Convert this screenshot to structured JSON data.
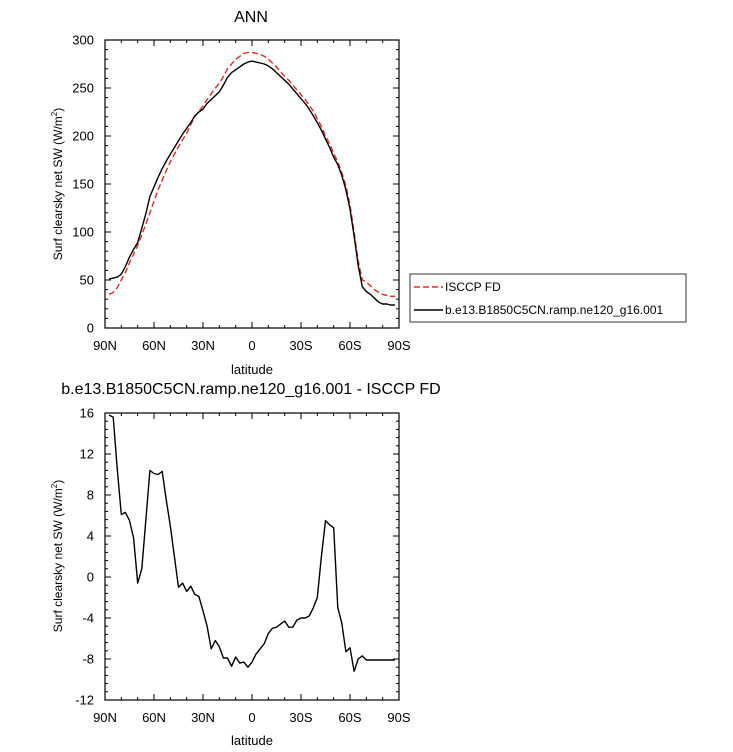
{
  "chart_data": [
    {
      "type": "line",
      "title": "ANN",
      "xlabel": "latitude",
      "ylabel": "Surf clearsky net SW (W/m",
      "ylabel_superscript": "2",
      "ylabel_suffix": ")",
      "xlim": [
        -90,
        90
      ],
      "ylim": [
        0,
        300
      ],
      "x_ticks": [
        -90,
        -60,
        -30,
        0,
        30,
        60,
        90
      ],
      "x_tick_labels": [
        "90N",
        "60N",
        "30N",
        "0",
        "30S",
        "60S",
        "90S"
      ],
      "y_ticks": [
        0,
        50,
        100,
        150,
        200,
        250,
        300
      ],
      "y_tick_labels": [
        "0",
        "50",
        "100",
        "150",
        "200",
        "250",
        "300"
      ],
      "legend_position": "right",
      "series": [
        {
          "name": "ISCCP FD",
          "color": "#e8281e",
          "dash": "dashed",
          "x": [
            -87.5,
            -85,
            -82.5,
            -80,
            -77.5,
            -75,
            -72.5,
            -70,
            -67.5,
            -65,
            -62.5,
            -60,
            -57.5,
            -55,
            -52.5,
            -50,
            -47.5,
            -45,
            -42.5,
            -40,
            -37.5,
            -35,
            -32.5,
            -30,
            -27.5,
            -25,
            -22.5,
            -20,
            -17.5,
            -15,
            -12.5,
            -10,
            -7.5,
            -5,
            -2.5,
            0,
            2.5,
            5,
            7.5,
            10,
            12.5,
            15,
            17.5,
            20,
            22.5,
            25,
            27.5,
            30,
            32.5,
            35,
            37.5,
            40,
            42.5,
            45,
            47.5,
            50,
            52.5,
            55,
            57.5,
            60,
            62.5,
            65,
            67.5,
            70,
            72.5,
            75,
            77.5,
            80,
            82.5,
            85,
            87.5
          ],
          "values": [
            35,
            37,
            42,
            50,
            58,
            68,
            77,
            86,
            97,
            108,
            120,
            132,
            144,
            154,
            164,
            173,
            181,
            189,
            196,
            203,
            212,
            220,
            226,
            231,
            238,
            244,
            250,
            255,
            262,
            270,
            275,
            280,
            283,
            286,
            287,
            287,
            286,
            285,
            283,
            280,
            276,
            272,
            267,
            262,
            258,
            253,
            248,
            243,
            238,
            232,
            226,
            218,
            210,
            200,
            192,
            182,
            173,
            162,
            148,
            128,
            100,
            70,
            50,
            48,
            44,
            40,
            37,
            35,
            34,
            33,
            33
          ]
        },
        {
          "name": "b.e13.B1850C5CN.ramp.ne120_g16.001",
          "color": "#000000",
          "dash": "solid",
          "x": [
            -87.5,
            -85,
            -82.5,
            -80,
            -77.5,
            -75,
            -72.5,
            -70,
            -67.5,
            -65,
            -62.5,
            -60,
            -57.5,
            -55,
            -52.5,
            -50,
            -47.5,
            -45,
            -42.5,
            -40,
            -37.5,
            -35,
            -32.5,
            -30,
            -27.5,
            -25,
            -22.5,
            -20,
            -17.5,
            -15,
            -12.5,
            -10,
            -7.5,
            -5,
            -2.5,
            0,
            2.5,
            5,
            7.5,
            10,
            12.5,
            15,
            17.5,
            20,
            22.5,
            25,
            27.5,
            30,
            32.5,
            35,
            37.5,
            40,
            42.5,
            45,
            47.5,
            50,
            52.5,
            55,
            57.5,
            60,
            62.5,
            65,
            67.5,
            70,
            72.5,
            75,
            77.5,
            80,
            82.5,
            85,
            87.5
          ],
          "values": [
            51,
            52,
            53,
            56,
            64,
            74,
            82,
            89,
            104,
            119,
            137,
            147,
            157,
            166,
            174,
            181,
            188,
            195,
            202,
            208,
            214,
            221,
            225,
            228,
            234,
            238,
            242,
            246,
            253,
            261,
            266,
            269,
            272,
            275,
            277,
            278,
            277,
            276,
            275,
            273,
            270,
            266,
            262,
            258,
            254,
            249,
            244,
            239,
            234,
            228,
            221,
            214,
            206,
            197,
            188,
            178,
            170,
            159,
            144,
            124,
            96,
            65,
            43,
            38,
            35,
            31,
            27,
            25,
            25,
            24,
            24
          ]
        }
      ]
    },
    {
      "type": "line",
      "title": "b.e13.B1850C5CN.ramp.ne120_g16.001 - ISCCP FD",
      "xlabel": "latitude",
      "ylabel": "Surf clearsky net SW (W/m",
      "ylabel_superscript": "2",
      "ylabel_suffix": ")",
      "xlim": [
        -90,
        90
      ],
      "ylim": [
        -12,
        16
      ],
      "x_ticks": [
        -90,
        -60,
        -30,
        0,
        30,
        60,
        90
      ],
      "x_tick_labels": [
        "90N",
        "60N",
        "30N",
        "0",
        "30S",
        "60S",
        "90S"
      ],
      "y_ticks": [
        -12,
        -8,
        -4,
        0,
        4,
        8,
        12,
        16
      ],
      "y_tick_labels": [
        "-12",
        "-8",
        "-4",
        "0",
        "4",
        "8",
        "12",
        "16"
      ],
      "series": [
        {
          "color": "#000000",
          "dash": "solid",
          "x": [
            -87.5,
            -85,
            -82.5,
            -80,
            -77.5,
            -75,
            -72.5,
            -70,
            -67.5,
            -65,
            -62.5,
            -60,
            -57.5,
            -55,
            -52.5,
            -50,
            -47.5,
            -45,
            -42.5,
            -40,
            -37.5,
            -35,
            -32.5,
            -30,
            -27.5,
            -25,
            -22.5,
            -20,
            -17.5,
            -15,
            -12.5,
            -10,
            -7.5,
            -5,
            -2.5,
            0,
            2.5,
            5,
            7.5,
            10,
            12.5,
            15,
            17.5,
            20,
            22.5,
            25,
            27.5,
            30,
            32.5,
            35,
            37.5,
            40,
            42.5,
            45,
            47.5,
            50,
            52.5,
            55,
            57.5,
            60,
            62.5,
            65,
            67.5,
            70,
            72.5,
            75,
            77.5,
            80,
            82.5,
            85,
            87.5
          ],
          "values": [
            15.8,
            15.6,
            10.5,
            6.1,
            6.3,
            5.5,
            3.8,
            -0.6,
            0.8,
            5.5,
            10.4,
            10.1,
            10.0,
            10.3,
            7.5,
            5.0,
            2.0,
            -1.0,
            -0.6,
            -1.4,
            -0.9,
            -1.7,
            -1.9,
            -3.3,
            -4.8,
            -7.0,
            -6.2,
            -6.8,
            -7.9,
            -7.9,
            -8.7,
            -7.8,
            -8.4,
            -8.3,
            -8.8,
            -8.3,
            -7.5,
            -7.0,
            -6.5,
            -5.5,
            -5.0,
            -4.9,
            -4.6,
            -4.3,
            -4.9,
            -4.9,
            -4.2,
            -4.0,
            -4.0,
            -3.8,
            -3.0,
            -2.0,
            2.0,
            5.5,
            5.1,
            4.8,
            -3.0,
            -4.5,
            -7.3,
            -6.9,
            -9.2,
            -8.0,
            -7.7,
            -8.1,
            -8.1,
            -8.1,
            -8.1,
            -8.1,
            -8.1,
            -8.1,
            -8.1
          ]
        }
      ]
    }
  ]
}
